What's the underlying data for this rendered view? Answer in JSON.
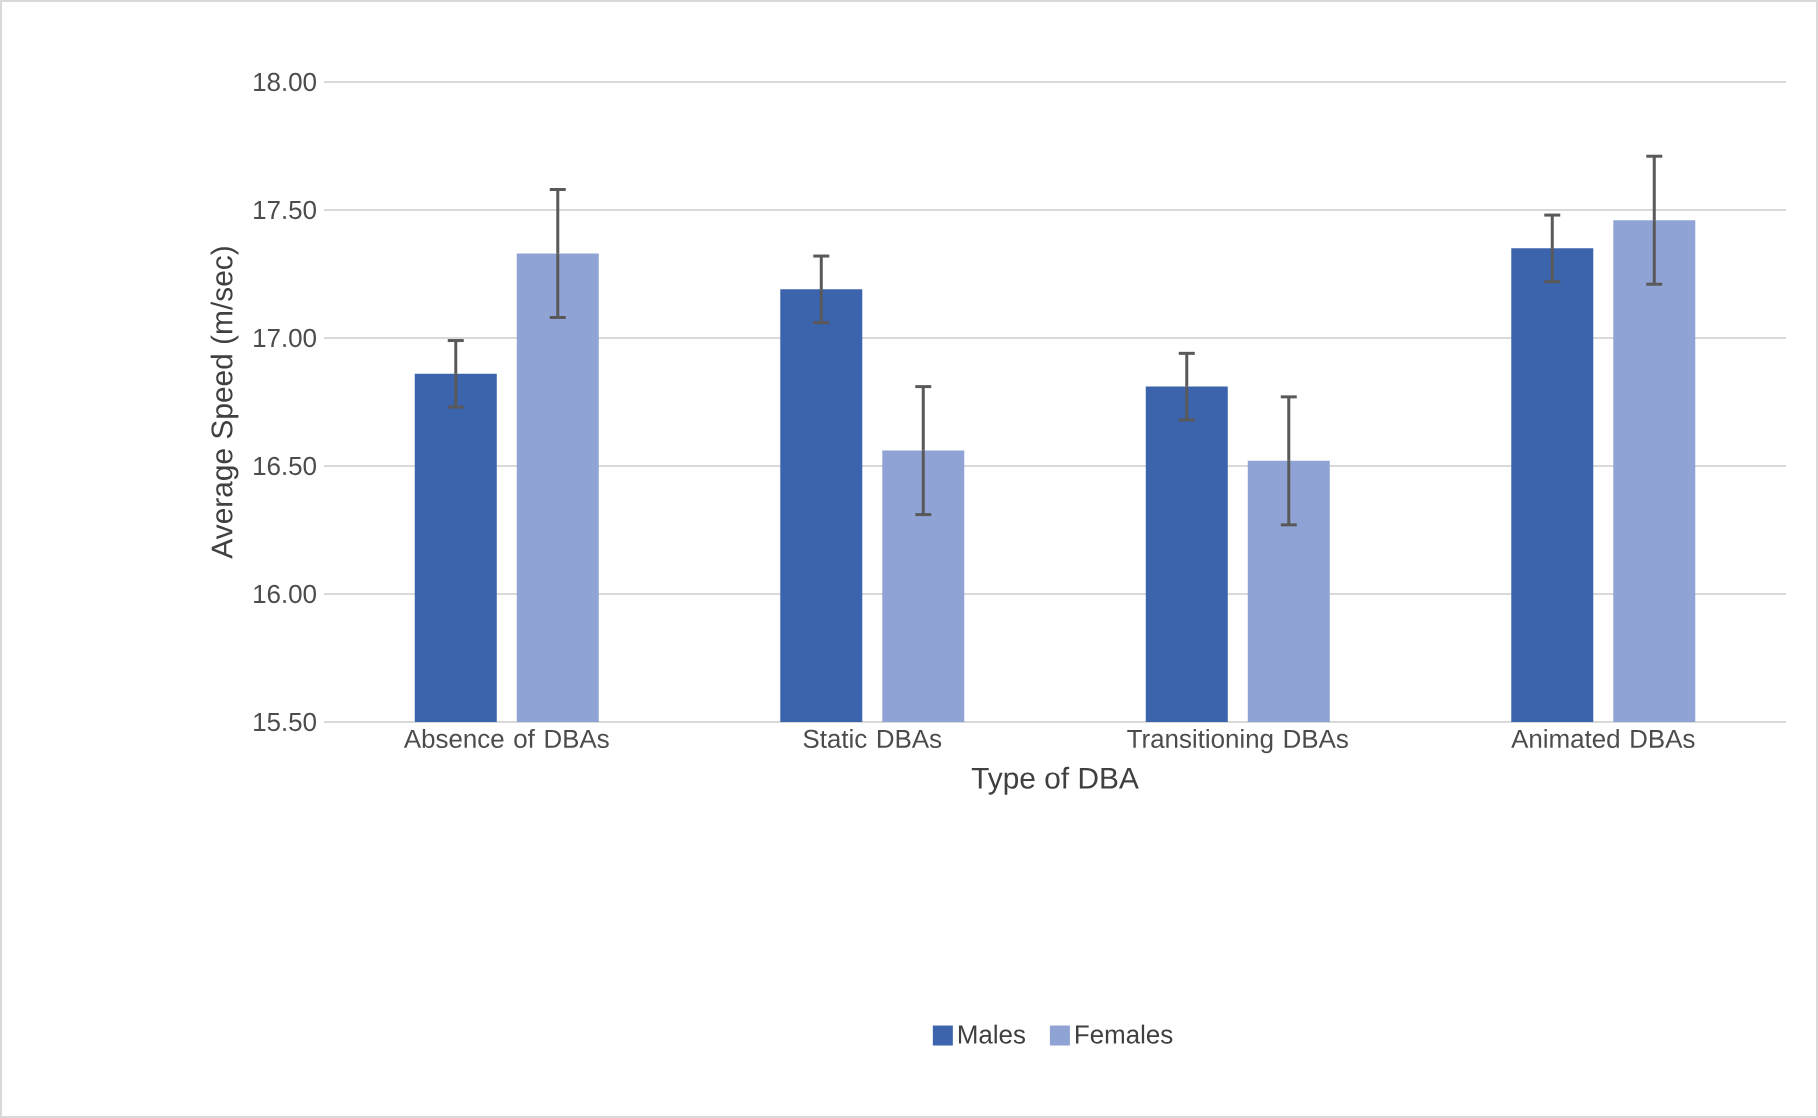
{
  "chart_data": {
    "type": "bar",
    "xlabel": "Type of DBA",
    "ylabel": "Average Speed (m/sec)",
    "categories": [
      "Absence of DBAs",
      "Static DBAs",
      "Transitioning DBAs",
      "Animated DBAs"
    ],
    "series": [
      {
        "name": "Males",
        "color": "#3c64ac",
        "values": [
          16.86,
          17.19,
          16.81,
          17.35
        ],
        "errors": [
          0.13,
          0.13,
          0.13,
          0.13
        ]
      },
      {
        "name": "Females",
        "color": "#8fa4d4",
        "values": [
          17.33,
          16.56,
          16.52,
          17.46
        ],
        "errors": [
          0.25,
          0.25,
          0.25,
          0.25
        ]
      }
    ],
    "ylim": [
      15.5,
      18.0
    ],
    "yticks": [
      {
        "value": 15.5,
        "label": "15.50"
      },
      {
        "value": 16.0,
        "label": "16.00"
      },
      {
        "value": 16.5,
        "label": "16.50"
      },
      {
        "value": 17.0,
        "label": "17.00"
      },
      {
        "value": 17.5,
        "label": "17.50"
      },
      {
        "value": 18.0,
        "label": "18.00"
      }
    ],
    "grid": "y",
    "legend": "bottom"
  }
}
